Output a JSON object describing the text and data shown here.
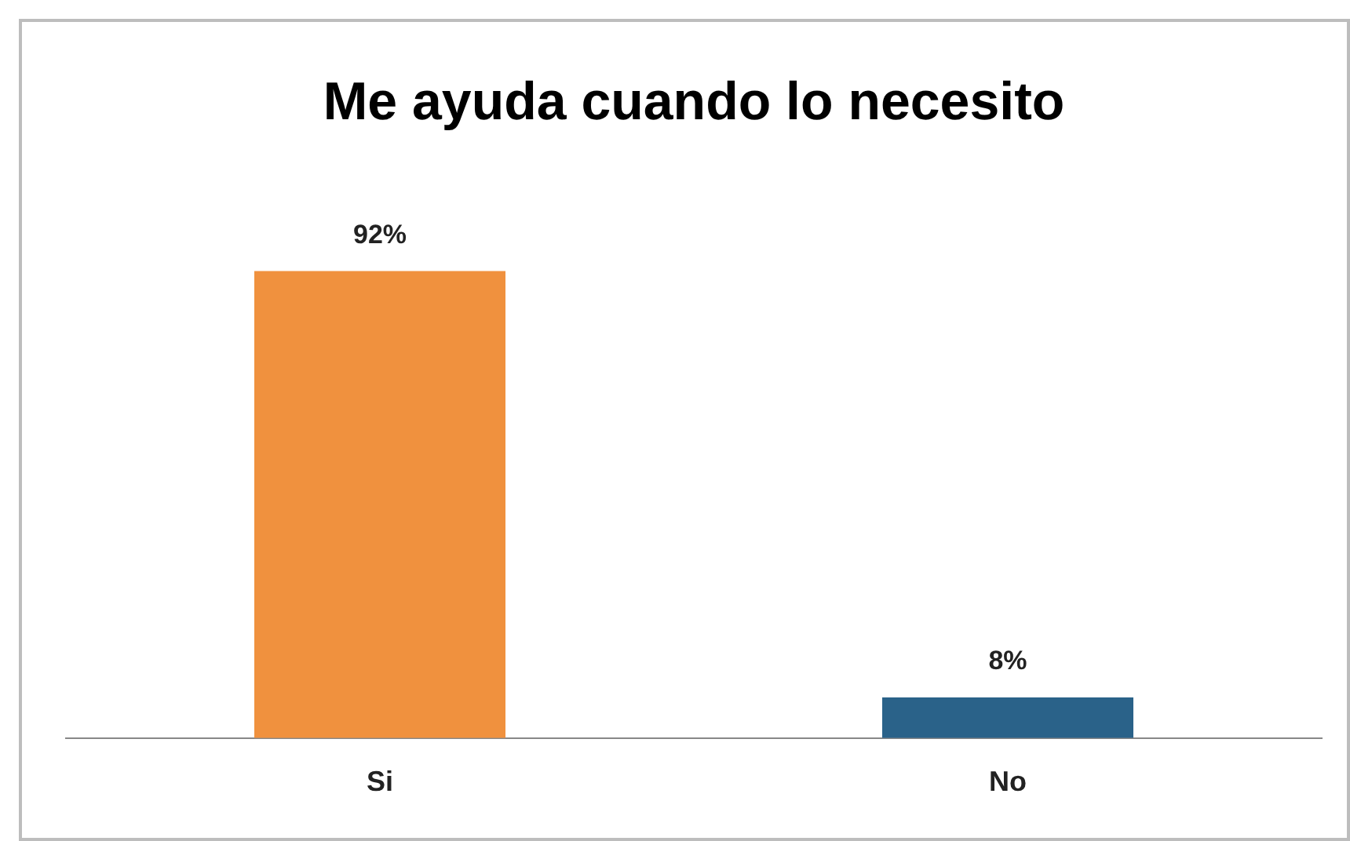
{
  "chart_data": {
    "type": "bar",
    "title": "Me ayuda cuando lo necesito",
    "categories": [
      "Si",
      "No"
    ],
    "values": [
      92,
      8
    ],
    "colors": [
      "#f0913e",
      "#2a6289"
    ],
    "value_labels": [
      "92%",
      "8%"
    ],
    "tick_labels": "x",
    "grid": false,
    "legend": false
  }
}
